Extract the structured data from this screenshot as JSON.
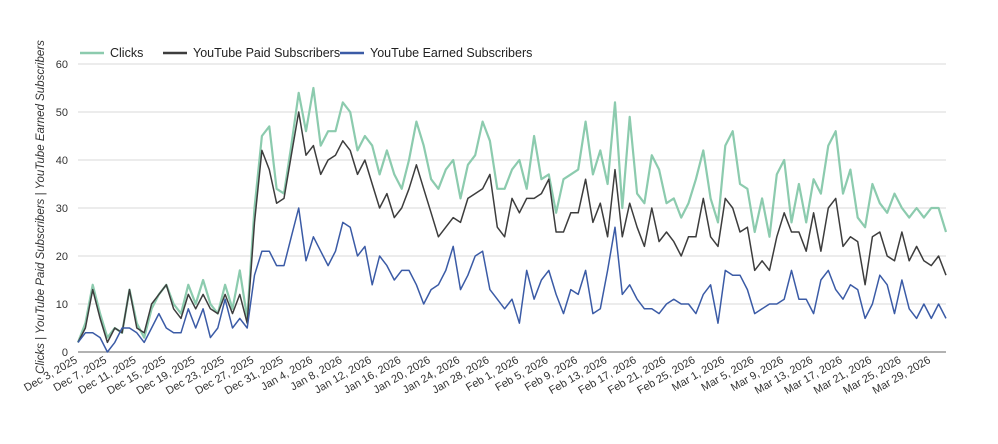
{
  "chart_data": {
    "type": "line",
    "title": "",
    "xlabel": "",
    "ylabel": "Clicks | YouTube Paid Subscribers | YouTube Earned Subscribers",
    "ylim": [
      0,
      60
    ],
    "yticks": [
      0,
      10,
      20,
      30,
      40,
      50,
      60
    ],
    "grid": true,
    "legend_position": "top-left",
    "x_start": "Dec 3, 2025",
    "x_tick_labels": [
      "Dec 3, 2025",
      "Dec 7, 2025",
      "Dec 11, 2025",
      "Dec 15, 2025",
      "Dec 19, 2025",
      "Dec 23, 2025",
      "Dec 27, 2025",
      "Dec 31, 2025",
      "Jan 4, 2026",
      "Jan 8, 2026",
      "Jan 12, 2026",
      "Jan 16, 2026",
      "Jan 20, 2026",
      "Jan 24, 2026",
      "Jan 28, 2026",
      "Feb 1, 2026",
      "Feb 5, 2026",
      "Feb 9, 2026",
      "Feb 13, 2026",
      "Feb 17, 2026",
      "Feb 21, 2026",
      "Feb 25, 2026",
      "Mar 1, 2026",
      "Mar 5, 2026",
      "Mar 9, 2026",
      "Mar 13, 2026",
      "Mar 17, 2026",
      "Mar 21, 2026",
      "Mar 25, 2026",
      "Mar 29, 2026"
    ],
    "series": [
      {
        "name": "Clicks",
        "color": "#8ccbae",
        "values": [
          2,
          6,
          14,
          8,
          3,
          5,
          4,
          13,
          6,
          3,
          9,
          12,
          14,
          10,
          8,
          14,
          10,
          15,
          10,
          8,
          14,
          9,
          17,
          7,
          30,
          45,
          47,
          34,
          33,
          43,
          54,
          46,
          55,
          43,
          46,
          46,
          52,
          50,
          42,
          45,
          43,
          37,
          42,
          37,
          34,
          40,
          48,
          43,
          36,
          34,
          38,
          40,
          32,
          39,
          41,
          48,
          44,
          34,
          34,
          38,
          40,
          34,
          45,
          36,
          37,
          29,
          36,
          37,
          38,
          48,
          37,
          42,
          35,
          52,
          30,
          49,
          33,
          31,
          41,
          38,
          31,
          32,
          28,
          31,
          36,
          42,
          32,
          27,
          43,
          46,
          35,
          34,
          25,
          32,
          24,
          37,
          40,
          27,
          35,
          27,
          36,
          33,
          43,
          46,
          33,
          38,
          28,
          26,
          35,
          31,
          29,
          33,
          30,
          28,
          30,
          28,
          30,
          30,
          25
        ]
      },
      {
        "name": "YouTube Paid Subscribers",
        "color": "#3d3d3d",
        "values": [
          2,
          5,
          13,
          7,
          2,
          5,
          4,
          13,
          5,
          4,
          10,
          12,
          14,
          9,
          7,
          12,
          9,
          12,
          9,
          8,
          12,
          8,
          12,
          6,
          27,
          42,
          38,
          31,
          32,
          41,
          50,
          41,
          43,
          37,
          40,
          41,
          44,
          42,
          37,
          40,
          35,
          30,
          33,
          28,
          30,
          34,
          39,
          34,
          29,
          24,
          26,
          28,
          27,
          32,
          33,
          34,
          37,
          26,
          24,
          32,
          29,
          32,
          32,
          33,
          36,
          25,
          25,
          29,
          29,
          36,
          27,
          31,
          24,
          38,
          24,
          31,
          26,
          22,
          30,
          23,
          25,
          23,
          20,
          24,
          24,
          32,
          24,
          22,
          32,
          30,
          25,
          26,
          17,
          19,
          17,
          24,
          29,
          25,
          25,
          21,
          29,
          21,
          30,
          32,
          22,
          24,
          23,
          14,
          24,
          25,
          20,
          19,
          25,
          19,
          22,
          19,
          18,
          20,
          16
        ]
      },
      {
        "name": "YouTube Earned Subscribers",
        "color": "#3b5ba6",
        "values": [
          2,
          4,
          4,
          3,
          0,
          2,
          5,
          5,
          4,
          2,
          5,
          8,
          5,
          4,
          4,
          9,
          5,
          9,
          3,
          5,
          11,
          5,
          7,
          5,
          16,
          21,
          21,
          18,
          18,
          24,
          30,
          19,
          24,
          21,
          18,
          21,
          27,
          26,
          20,
          22,
          14,
          20,
          18,
          15,
          17,
          17,
          14,
          10,
          13,
          14,
          17,
          22,
          13,
          16,
          20,
          21,
          13,
          11,
          9,
          11,
          6,
          17,
          11,
          15,
          17,
          12,
          8,
          13,
          12,
          17,
          8,
          9,
          17,
          26,
          12,
          14,
          11,
          9,
          9,
          8,
          10,
          11,
          10,
          10,
          8,
          12,
          14,
          6,
          17,
          16,
          16,
          13,
          8,
          9,
          10,
          10,
          11,
          17,
          11,
          11,
          8,
          15,
          17,
          13,
          11,
          14,
          13,
          7,
          10,
          16,
          14,
          8,
          15,
          9,
          7,
          10,
          7,
          10,
          7
        ]
      }
    ]
  }
}
